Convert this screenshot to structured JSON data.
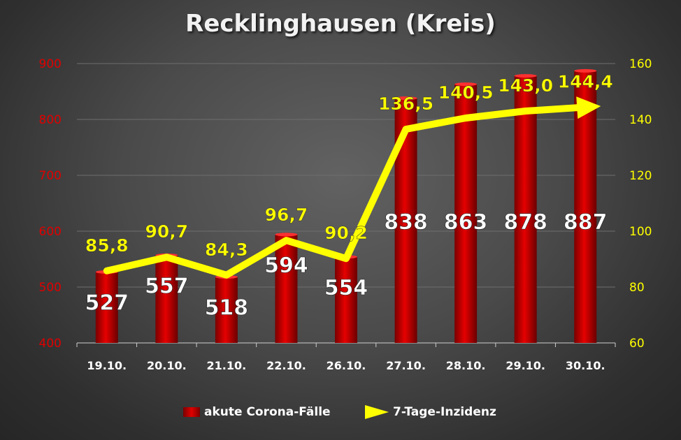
{
  "chart_data": {
    "type": "bar+line",
    "title": "Recklinghausen (Kreis)",
    "categories": [
      "19.10.",
      "20.10.",
      "21.10.",
      "22.10.",
      "26.10.",
      "27.10.",
      "28.10.",
      "29.10.",
      "30.10."
    ],
    "series": [
      {
        "name": "akute Corona-Fälle",
        "type": "bar",
        "axis": "left",
        "values": [
          527,
          557,
          518,
          594,
          554,
          838,
          863,
          878,
          887
        ],
        "labels": [
          "527",
          "557",
          "518",
          "594",
          "554",
          "838",
          "863",
          "878",
          "887"
        ],
        "color": "#cc0000"
      },
      {
        "name": "7-Tage-Inzidenz",
        "type": "line",
        "axis": "right",
        "values": [
          85.8,
          90.7,
          84.3,
          96.7,
          90.2,
          136.5,
          140.5,
          143.0,
          144.4
        ],
        "labels": [
          "85,8",
          "90,7",
          "84,3",
          "96,7",
          "90,2",
          "136,5",
          "140,5",
          "143,0",
          "144,4"
        ],
        "color": "#ffff00"
      }
    ],
    "y_left": {
      "min": 400,
      "max": 900,
      "ticks": [
        "400",
        "500",
        "600",
        "700",
        "800",
        "900"
      ],
      "color": "#e00000"
    },
    "y_right": {
      "min": 60,
      "max": 160,
      "ticks": [
        "60",
        "80",
        "100",
        "120",
        "140",
        "160"
      ],
      "color": "#ffff00"
    },
    "grid": true,
    "legend": "bottom"
  }
}
